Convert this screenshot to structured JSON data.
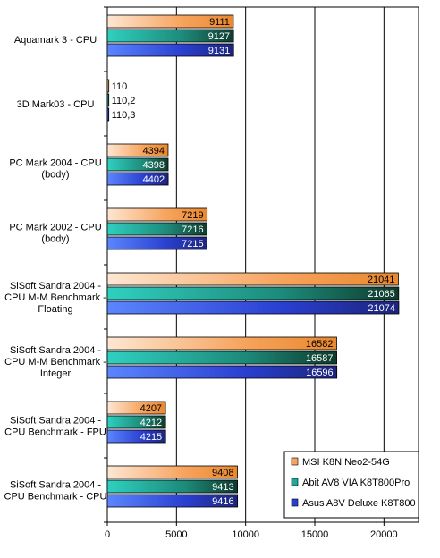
{
  "chart_data": {
    "type": "bar",
    "orientation": "horizontal",
    "categories": [
      [
        "Aquamark 3 - CPU"
      ],
      [
        "3D Mark03 - CPU"
      ],
      [
        "PC Mark 2004 - CPU",
        "(body)"
      ],
      [
        "PC Mark 2002 - CPU",
        "(body)"
      ],
      [
        "SiSoft Sandra 2004 -",
        "CPU M-M Benchmark -",
        "Floating"
      ],
      [
        "SiSoft Sandra 2004 -",
        "CPU M-M Benchmark -",
        "Integer"
      ],
      [
        "SiSoft Sandra 2004 -",
        "CPU Benchmark - FPU"
      ],
      [
        "SiSoft Sandra 2004 -",
        "CPU Benchmark - CPU"
      ]
    ],
    "series": [
      {
        "name": "MSI K8N Neo2-54G",
        "color": "#f7a35c",
        "values": [
          9111,
          110,
          4394,
          7219,
          21041,
          16582,
          4207,
          9408
        ],
        "labels": [
          "9111",
          "110",
          "4394",
          "7219",
          "21041",
          "16582",
          "4207",
          "9408"
        ]
      },
      {
        "name": "Abit AV8 VIA K8T800Pro",
        "color": "#1fa79a",
        "values": [
          9127,
          110.2,
          4398,
          7216,
          21065,
          16587,
          4212,
          9413
        ],
        "labels": [
          "9127",
          "110,2",
          "4398",
          "7216",
          "21065",
          "16587",
          "4212",
          "9413"
        ]
      },
      {
        "name": "Asus A8V Deluxe K8T800",
        "color": "#2a3fd0",
        "values": [
          9131,
          110.3,
          4402,
          7215,
          21074,
          16596,
          4215,
          9416
        ],
        "labels": [
          "9131",
          "110,3",
          "4402",
          "7215",
          "21074",
          "16596",
          "4215",
          "9416"
        ]
      }
    ],
    "xlim": [
      0,
      22500
    ],
    "xticks": [
      0,
      5000,
      10000,
      15000,
      20000
    ],
    "grid": true,
    "legend_position": "bottom-right",
    "title": "",
    "xlabel": "",
    "ylabel": ""
  }
}
